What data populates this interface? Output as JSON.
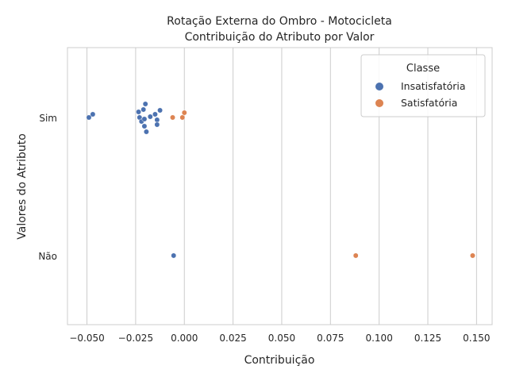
{
  "chart_data": {
    "type": "scatter",
    "title": [
      "Rotação Externa do Ombro - Motocicleta",
      "Contribuição do Atributo por Valor"
    ],
    "xlabel": "Contribuição",
    "ylabel": "Valores do Atributo",
    "xlim": [
      -0.06,
      0.158
    ],
    "xticks": [
      -0.05,
      -0.025,
      0.0,
      0.025,
      0.05,
      0.075,
      0.1,
      0.125,
      0.15
    ],
    "xtick_labels": [
      "−0.050",
      "−0.025",
      "0.000",
      "0.025",
      "0.050",
      "0.075",
      "0.100",
      "0.125",
      "0.150"
    ],
    "categories": [
      "Sim",
      "Não"
    ],
    "grid": true,
    "legend": {
      "title": "Classe",
      "position": "top-right"
    },
    "series": [
      {
        "name": "Insatisfatória",
        "color": "#4c72b0",
        "points": [
          {
            "x": -0.049,
            "y": "Sim"
          },
          {
            "x": -0.047,
            "y": "Sim"
          },
          {
            "x": -0.0235,
            "y": "Sim"
          },
          {
            "x": -0.023,
            "y": "Sim"
          },
          {
            "x": -0.022,
            "y": "Sim"
          },
          {
            "x": -0.021,
            "y": "Sim"
          },
          {
            "x": -0.0205,
            "y": "Sim"
          },
          {
            "x": -0.0205,
            "y": "Sim"
          },
          {
            "x": -0.02,
            "y": "Sim"
          },
          {
            "x": -0.0195,
            "y": "Sim"
          },
          {
            "x": -0.0175,
            "y": "Sim"
          },
          {
            "x": -0.015,
            "y": "Sim"
          },
          {
            "x": -0.014,
            "y": "Sim"
          },
          {
            "x": -0.014,
            "y": "Sim"
          },
          {
            "x": -0.0125,
            "y": "Sim"
          },
          {
            "x": -0.0055,
            "y": "Não"
          }
        ]
      },
      {
        "name": "Satisfatória",
        "color": "#dd8452",
        "points": [
          {
            "x": -0.006,
            "y": "Sim"
          },
          {
            "x": -0.001,
            "y": "Sim"
          },
          {
            "x": 0.0,
            "y": "Sim"
          },
          {
            "x": 0.088,
            "y": "Não"
          },
          {
            "x": 0.148,
            "y": "Não"
          }
        ]
      }
    ]
  }
}
